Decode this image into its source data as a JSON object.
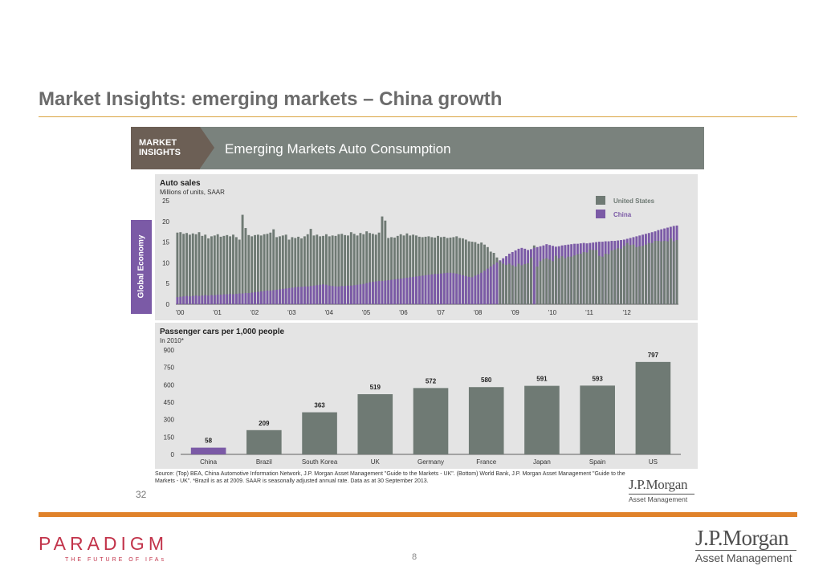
{
  "slide": {
    "title": "Market Insights: emerging markets – China growth",
    "page_number": "8"
  },
  "banner": {
    "brand": "MARKET\nINSIGHTS",
    "title": "Emerging Markets Auto Consumption"
  },
  "side_tab": "Global Economy",
  "panel_number": "32",
  "source_text": "Source: (Top) BEA, China Automotive Information Network, J.P. Morgan Asset Management \"Guide to the Markets - UK\". (Bottom) World Bank, J.P. Morgan Asset Management \"Guide to the Markets - UK\". *Brazil is as at 2009. SAAR is seasonally adjusted annual rate. Data as at 30 September 2013.",
  "logos": {
    "jpm_main": "J.P.Morgan",
    "jpm_sub": "Asset Management",
    "paradigm_name": "PARADIGM",
    "paradigm_tag": "THE FUTURE OF IFAs"
  },
  "colors": {
    "us_gray": "#6f7a74",
    "china_purple": "#7b5aa6",
    "accent_orange": "#e0822a",
    "title_rule": "#d9a441",
    "paradigm_red": "#c2334a"
  },
  "chart_data": [
    {
      "type": "bar",
      "title": "Auto sales",
      "subtitle": "Millions of units, SAAR",
      "ylim": [
        0,
        25
      ],
      "yticks": [
        0,
        5,
        10,
        15,
        20,
        25
      ],
      "xticks": [
        "'00",
        "'01",
        "'02",
        "'03",
        "'04",
        "'05",
        "'06",
        "'07",
        "'08",
        "'09",
        "'10",
        "'11",
        "'12"
      ],
      "frequency": "monthly",
      "legend": [
        "United States",
        "China"
      ],
      "legend_position": "top-right",
      "series": [
        {
          "name": "United States",
          "color": "#6f7a74",
          "values": [
            17.3,
            17.4,
            17.0,
            17.2,
            16.8,
            17.1,
            16.9,
            17.4,
            16.5,
            16.8,
            15.9,
            16.4,
            16.6,
            16.9,
            16.3,
            16.5,
            16.7,
            16.4,
            16.8,
            16.2,
            15.6,
            21.6,
            18.4,
            16.7,
            16.4,
            16.7,
            16.8,
            16.6,
            16.9,
            17.0,
            17.3,
            18.1,
            16.2,
            16.4,
            16.6,
            16.8,
            15.6,
            16.2,
            16.0,
            16.3,
            15.9,
            16.4,
            16.9,
            18.2,
            16.6,
            16.8,
            16.4,
            16.5,
            16.9,
            16.4,
            16.6,
            16.5,
            16.9,
            17.0,
            16.7,
            16.6,
            17.4,
            17.0,
            16.6,
            17.2,
            16.9,
            17.6,
            17.2,
            17.0,
            16.8,
            17.3,
            21.2,
            20.2,
            16.0,
            16.2,
            16.1,
            16.5,
            16.9,
            16.6,
            17.1,
            16.6,
            16.8,
            16.6,
            16.3,
            16.2,
            16.3,
            16.4,
            16.2,
            16.1,
            16.5,
            16.2,
            16.3,
            16.0,
            16.1,
            16.2,
            16.4,
            16.0,
            15.9,
            15.6,
            15.2,
            15.1,
            15.0,
            14.6,
            14.9,
            14.4,
            13.8,
            12.7,
            12.4,
            11.3,
            10.3,
            9.8,
            9.5,
            9.8,
            9.4,
            9.1,
            9.8,
            9.4,
            9.7,
            9.9,
            11.3,
            14.2,
            9.1,
            10.4,
            10.9,
            11.1,
            10.8,
            10.4,
            11.7,
            11.1,
            11.6,
            11.1,
            11.5,
            11.5,
            11.8,
            12.1,
            12.2,
            12.6,
            12.5,
            13.2,
            13.1,
            13.1,
            11.7,
            11.5,
            12.2,
            12.1,
            13.0,
            13.2,
            13.5,
            13.4,
            14.1,
            14.8,
            14.3,
            14.4,
            13.8,
            14.0,
            14.1,
            14.4,
            14.8,
            14.8,
            15.3,
            15.3,
            15.2,
            15.3,
            15.2,
            15.9,
            15.2,
            15.5
          ]
        },
        {
          "name": "China",
          "color": "#7b5aa6",
          "values": [
            1.7,
            1.8,
            1.9,
            2.0,
            1.9,
            2.0,
            2.1,
            2.0,
            2.1,
            2.2,
            2.1,
            2.2,
            2.2,
            2.3,
            2.3,
            2.4,
            2.4,
            2.5,
            2.4,
            2.5,
            2.6,
            2.6,
            2.7,
            2.7,
            2.8,
            2.9,
            3.0,
            3.1,
            3.2,
            3.3,
            3.3,
            3.4,
            3.5,
            3.6,
            3.7,
            3.8,
            3.9,
            4.0,
            4.1,
            4.2,
            4.2,
            4.3,
            4.3,
            4.4,
            4.5,
            4.6,
            4.7,
            4.8,
            4.7,
            4.5,
            4.4,
            4.3,
            4.3,
            4.4,
            4.4,
            4.5,
            4.5,
            4.6,
            4.7,
            4.8,
            4.9,
            5.1,
            5.3,
            5.4,
            5.5,
            5.6,
            5.6,
            5.7,
            5.8,
            5.9,
            6.0,
            6.1,
            6.2,
            6.3,
            6.4,
            6.5,
            6.6,
            6.7,
            6.8,
            6.9,
            7.0,
            7.1,
            7.2,
            7.3,
            7.3,
            7.4,
            7.5,
            7.6,
            7.6,
            7.5,
            7.4,
            7.2,
            7.0,
            6.8,
            6.6,
            6.5,
            6.9,
            7.2,
            7.6,
            8.1,
            8.6,
            9.1,
            9.6,
            10.1,
            10.6,
            11.1,
            11.6,
            12.2,
            12.6,
            13.0,
            13.4,
            13.6,
            13.4,
            13.1,
            13.3,
            13.6,
            13.8,
            14.0,
            14.2,
            14.5,
            14.3,
            14.1,
            13.9,
            14.0,
            14.2,
            14.3,
            14.4,
            14.5,
            14.6,
            14.6,
            14.7,
            14.8,
            14.7,
            14.8,
            14.9,
            15.0,
            15.1,
            15.1,
            15.2,
            15.2,
            15.3,
            15.3,
            15.4,
            15.5,
            15.6,
            15.8,
            16.0,
            16.2,
            16.4,
            16.6,
            16.8,
            17.0,
            17.2,
            17.4,
            17.6,
            17.9,
            18.1,
            18.3,
            18.5,
            18.7,
            18.9,
            19.0
          ]
        }
      ]
    },
    {
      "type": "bar",
      "title": "Passenger cars per 1,000 people",
      "subtitle": "In 2010*",
      "ylim": [
        0,
        900
      ],
      "yticks": [
        0,
        150,
        300,
        450,
        600,
        750,
        900
      ],
      "categories": [
        "China",
        "Brazil",
        "South Korea",
        "UK",
        "Germany",
        "France",
        "Japan",
        "Spain",
        "US"
      ],
      "values": [
        58,
        209,
        363,
        519,
        572,
        580,
        591,
        593,
        797
      ],
      "data_labels": [
        "58",
        "209",
        "363",
        "519",
        "572",
        "580",
        "591",
        "593",
        "797"
      ],
      "highlight_category": "China",
      "highlight_color": "#7b5aa6",
      "bar_color": "#6f7a74"
    }
  ]
}
